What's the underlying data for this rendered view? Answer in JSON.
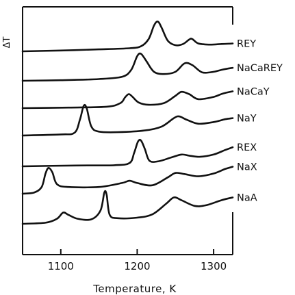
{
  "chart_data": {
    "type": "line",
    "title": "",
    "xlabel": "Temperature, K",
    "ylabel": "ΔT",
    "xlim": [
      1050,
      1325
    ],
    "x_ticks": [
      "1100",
      "1200",
      "1300"
    ],
    "x_tick_values": [
      1100,
      1200,
      1300
    ],
    "grid": false,
    "y_units": "relative (stacked DTA traces, arbitrary)",
    "series": [
      {
        "name": "REY",
        "points": [
          [
            1050,
            0.0
          ],
          [
            1100,
            0.15
          ],
          [
            1150,
            0.35
          ],
          [
            1190,
            0.55
          ],
          [
            1205,
            0.9
          ],
          [
            1215,
            2.2
          ],
          [
            1222,
            4.6
          ],
          [
            1227,
            5.3
          ],
          [
            1232,
            4.2
          ],
          [
            1240,
            1.9
          ],
          [
            1250,
            1.1
          ],
          [
            1260,
            1.3
          ],
          [
            1268,
            2.1
          ],
          [
            1272,
            2.2
          ],
          [
            1280,
            1.4
          ],
          [
            1295,
            1.2
          ],
          [
            1310,
            1.3
          ],
          [
            1325,
            1.4
          ]
        ]
      },
      {
        "name": "NaCaREY",
        "points": [
          [
            1050,
            0.0
          ],
          [
            1100,
            0.1
          ],
          [
            1150,
            0.3
          ],
          [
            1180,
            0.7
          ],
          [
            1192,
            1.9
          ],
          [
            1200,
            4.4
          ],
          [
            1205,
            4.8
          ],
          [
            1212,
            3.5
          ],
          [
            1222,
            1.6
          ],
          [
            1235,
            1.2
          ],
          [
            1250,
            1.6
          ],
          [
            1262,
            3.1
          ],
          [
            1272,
            2.8
          ],
          [
            1285,
            1.5
          ],
          [
            1300,
            1.6
          ],
          [
            1312,
            2.0
          ],
          [
            1325,
            2.3
          ]
        ]
      },
      {
        "name": "NaCaY",
        "points": [
          [
            1050,
            0.0
          ],
          [
            1110,
            0.1
          ],
          [
            1160,
            0.25
          ],
          [
            1178,
            0.9
          ],
          [
            1184,
            1.9
          ],
          [
            1189,
            2.5
          ],
          [
            1194,
            2.0
          ],
          [
            1202,
            1.0
          ],
          [
            1215,
            0.6
          ],
          [
            1235,
            0.9
          ],
          [
            1250,
            2.2
          ],
          [
            1258,
            2.9
          ],
          [
            1268,
            2.5
          ],
          [
            1280,
            1.6
          ],
          [
            1300,
            2.0
          ],
          [
            1312,
            2.6
          ],
          [
            1325,
            3.0
          ]
        ]
      },
      {
        "name": "NaY",
        "points": [
          [
            1050,
            0.0
          ],
          [
            1100,
            0.2
          ],
          [
            1118,
            0.5
          ],
          [
            1125,
            2.8
          ],
          [
            1130,
            5.3
          ],
          [
            1134,
            4.8
          ],
          [
            1140,
            1.6
          ],
          [
            1150,
            0.7
          ],
          [
            1175,
            0.6
          ],
          [
            1210,
            0.9
          ],
          [
            1232,
            1.6
          ],
          [
            1248,
            3.1
          ],
          [
            1255,
            3.4
          ],
          [
            1265,
            2.8
          ],
          [
            1280,
            2.1
          ],
          [
            1300,
            2.4
          ],
          [
            1315,
            2.9
          ],
          [
            1325,
            3.1
          ]
        ]
      },
      {
        "name": "REX",
        "points": [
          [
            1050,
            0.0
          ],
          [
            1120,
            0.15
          ],
          [
            1170,
            0.2
          ],
          [
            1190,
            0.6
          ],
          [
            1196,
            2.4
          ],
          [
            1201,
            4.4
          ],
          [
            1205,
            4.6
          ],
          [
            1210,
            3.1
          ],
          [
            1216,
            1.0
          ],
          [
            1228,
            0.9
          ],
          [
            1245,
            1.6
          ],
          [
            1258,
            2.1
          ],
          [
            1268,
            1.9
          ],
          [
            1282,
            1.7
          ],
          [
            1300,
            2.1
          ],
          [
            1315,
            2.9
          ],
          [
            1325,
            3.4
          ]
        ]
      },
      {
        "name": "NaX",
        "points": [
          [
            1050,
            0.0
          ],
          [
            1065,
            0.2
          ],
          [
            1075,
            1.2
          ],
          [
            1080,
            3.6
          ],
          [
            1084,
            4.6
          ],
          [
            1089,
            3.8
          ],
          [
            1095,
            1.7
          ],
          [
            1110,
            1.2
          ],
          [
            1150,
            1.2
          ],
          [
            1180,
            1.9
          ],
          [
            1190,
            2.3
          ],
          [
            1200,
            1.9
          ],
          [
            1220,
            1.5
          ],
          [
            1240,
            2.9
          ],
          [
            1250,
            3.7
          ],
          [
            1262,
            3.5
          ],
          [
            1280,
            3.1
          ],
          [
            1300,
            3.6
          ],
          [
            1315,
            4.4
          ],
          [
            1325,
            4.8
          ]
        ]
      },
      {
        "name": "NaA",
        "points": [
          [
            1050,
            0.0
          ],
          [
            1080,
            0.2
          ],
          [
            1095,
            0.9
          ],
          [
            1103,
            2.0
          ],
          [
            1110,
            1.6
          ],
          [
            1122,
            0.9
          ],
          [
            1140,
            0.8
          ],
          [
            1152,
            2.4
          ],
          [
            1157,
            5.6
          ],
          [
            1160,
            5.2
          ],
          [
            1164,
            1.6
          ],
          [
            1175,
            1.0
          ],
          [
            1200,
            1.1
          ],
          [
            1220,
            1.7
          ],
          [
            1238,
            3.6
          ],
          [
            1248,
            4.7
          ],
          [
            1258,
            4.2
          ],
          [
            1275,
            3.2
          ],
          [
            1290,
            3.3
          ],
          [
            1310,
            4.2
          ],
          [
            1325,
            4.7
          ]
        ]
      }
    ]
  }
}
